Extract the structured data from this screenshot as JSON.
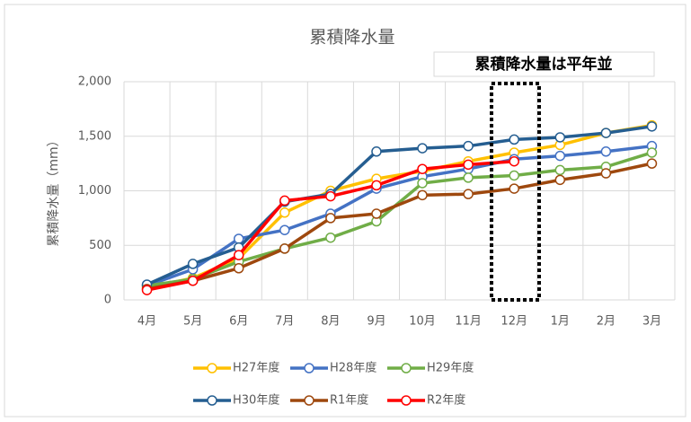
{
  "chart_data": {
    "type": "line",
    "title": "累積降水量",
    "annotation": "累積降水量は平年並",
    "y_label": "累積降水量（mm）",
    "categories": [
      "4月",
      "5月",
      "6月",
      "7月",
      "8月",
      "9月",
      "10月",
      "11月",
      "12月",
      "1月",
      "2月",
      "3月"
    ],
    "ylim": [
      0,
      2000
    ],
    "yticks": [
      0,
      500,
      {
        "value": 1000,
        "label": "1,000"
      },
      {
        "value": 1500,
        "label": "1,500"
      },
      {
        "value": 2000,
        "label": "2,000"
      }
    ],
    "grid": true,
    "series": [
      {
        "name": "H27年度",
        "color": "#ffc000",
        "values": [
          110,
          200,
          380,
          800,
          1000,
          1110,
          1180,
          1270,
          1350,
          1420,
          1530,
          1600
        ]
      },
      {
        "name": "H28年度",
        "color": "#4472c4",
        "values": [
          130,
          280,
          560,
          640,
          790,
          1020,
          1130,
          1200,
          1290,
          1320,
          1360,
          1410
        ]
      },
      {
        "name": "H29年度",
        "color": "#70ad47",
        "values": [
          130,
          190,
          350,
          470,
          570,
          720,
          1070,
          1120,
          1140,
          1190,
          1220,
          1350
        ]
      },
      {
        "name": "H30年度",
        "color": "#255e91",
        "values": [
          140,
          330,
          480,
          900,
          970,
          1360,
          1390,
          1410,
          1470,
          1490,
          1530,
          1590
        ]
      },
      {
        "name": "R1年度",
        "color": "#9e480e",
        "values": [
          100,
          175,
          290,
          470,
          750,
          790,
          960,
          970,
          1020,
          1100,
          1160,
          1250
        ]
      },
      {
        "name": "R2年度",
        "color": "#ff0000",
        "values": [
          90,
          175,
          410,
          910,
          950,
          1050,
          1200,
          1240,
          1270,
          null,
          null,
          null
        ]
      }
    ]
  }
}
